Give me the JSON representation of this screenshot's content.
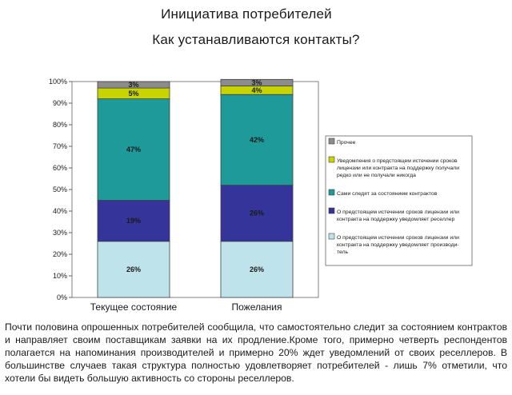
{
  "title": "Инициатива потребителей",
  "subtitle": "Как устанавливаются контакты?",
  "chart_data": {
    "type": "bar",
    "stacked": true,
    "categories": [
      "Текущее состояние",
      "Пожелания"
    ],
    "ylim": [
      0,
      100
    ],
    "y_ticks": [
      "0%",
      "10%",
      "20%",
      "30%",
      "40%",
      "50%",
      "60%",
      "70%",
      "80%",
      "90%",
      "100%"
    ],
    "series": [
      {
        "name": "О предстоящем истечении сроков лицензии или контракта на поддержку уведомляет производитель",
        "color": "#bfe3ea",
        "values": [
          26,
          26
        ],
        "labels": [
          "26%",
          "26%"
        ]
      },
      {
        "name": "О предстоящем истечении сроков лицензии или контракта на поддержку уведомляет реселлер",
        "color": "#34349a",
        "values": [
          19,
          26
        ],
        "labels": [
          "19%",
          "26%"
        ]
      },
      {
        "name": "Сами следят за состоянием контрактов",
        "color": "#1e9a9a",
        "values": [
          47,
          42
        ],
        "labels": [
          "47%",
          "42%"
        ]
      },
      {
        "name": "Уведомления о предстоящем истечении сроков лицензии или контракта на поддержку получали редко или не получали никогда",
        "color": "#c8d400",
        "values": [
          5,
          4
        ],
        "labels": [
          "5%",
          "4%"
        ]
      },
      {
        "name": "Прочее",
        "color": "#8c8c8c",
        "values": [
          3,
          3
        ],
        "labels": [
          "3%",
          "3%"
        ]
      }
    ],
    "legend": [
      {
        "lines": [
          "Прочее"
        ],
        "color": "#8c8c8c"
      },
      {
        "lines": [
          "Уведомления о предстоящем истечении сроков",
          "лицензии или контракта на поддержку получали",
          "редко или не получали никогда"
        ],
        "color": "#c8d400"
      },
      {
        "lines": [
          "Сами следят за состоянием контрактов"
        ],
        "color": "#1e9a9a"
      },
      {
        "lines": [
          "О предстоящем истечении сроков лицензии или",
          "контракта на поддержку уведомляет реселлер"
        ],
        "color": "#34349a"
      },
      {
        "lines": [
          "О предстоящем истечении сроков лицензии или",
          "контракта на поддержку уведомляет производи-",
          "тель"
        ],
        "color": "#bfe3ea"
      }
    ],
    "legend_position": "right"
  },
  "caption": "Почти половина опрошенных потребителей сообщила, что самостоятельно следит за состоянием контрактов и направляет своим поставщикам заявки на их продление.Кроме того, примерно четверть респондентов полагается на напоминания производителей и примерно 20% ждет уведомлений от своих реселлеров. В большинстве случаев такая структура полностью удовлетворяет потребителей - лишь 7% отметили, что хотели бы видеть большую активность со стороны реселлеров."
}
